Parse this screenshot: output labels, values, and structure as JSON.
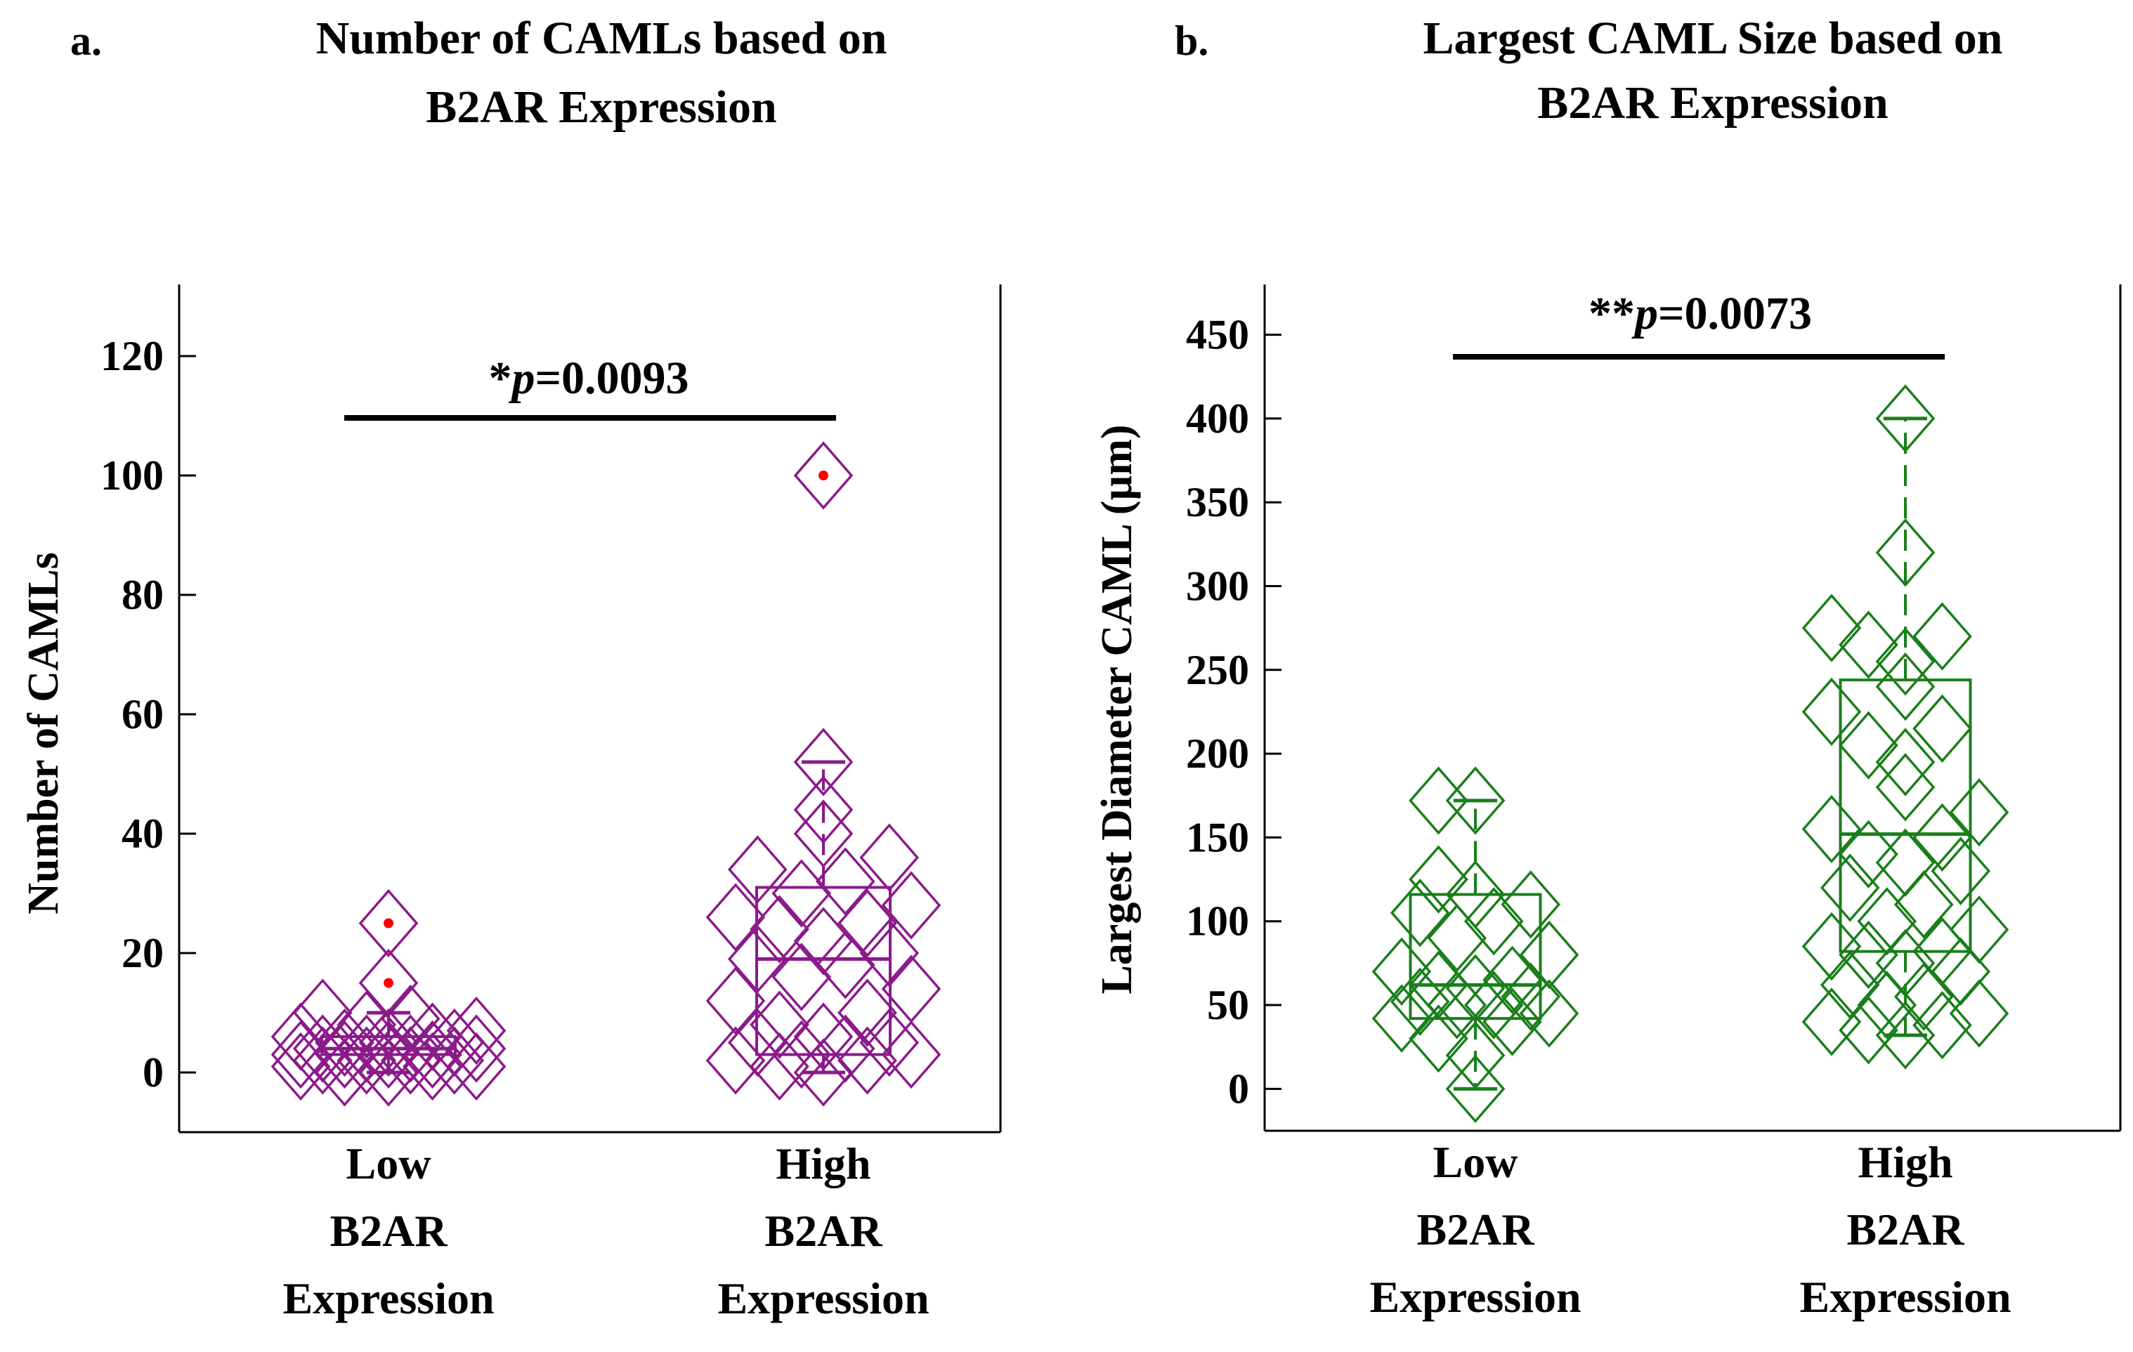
{
  "chart_data": [
    {
      "panel_label": "a.",
      "type": "boxplot",
      "title": [
        "Number of CAMLs based on",
        "B2AR Expression"
      ],
      "ylabel": "Number of CAMLs",
      "ylim": [
        -10,
        132
      ],
      "yticks": [
        0,
        20,
        40,
        60,
        80,
        100,
        120
      ],
      "color": "#8B1A8B",
      "outlier_color": "#FF0000",
      "categories": [
        {
          "lines": [
            "Low",
            "B2AR",
            "Expression"
          ],
          "box": {
            "q1": 3,
            "median": 4,
            "q3": 6,
            "whisker_low": 0,
            "whisker_high": 10
          },
          "points": [
            0,
            0,
            1,
            1,
            1,
            2,
            2,
            2,
            2,
            3,
            3,
            3,
            3,
            4,
            4,
            4,
            4,
            5,
            5,
            5,
            6,
            6,
            7,
            8,
            9,
            10,
            15,
            25
          ],
          "outliers": [
            15,
            25
          ]
        },
        {
          "lines": [
            "High",
            "B2AR",
            "Expression"
          ],
          "box": {
            "q1": 3,
            "median": 19,
            "q3": 31,
            "whisker_low": 0,
            "whisker_high": 52
          },
          "points": [
            0,
            1,
            2,
            2,
            3,
            3,
            4,
            5,
            5,
            6,
            8,
            10,
            12,
            14,
            16,
            18,
            19,
            20,
            22,
            24,
            25,
            26,
            28,
            30,
            32,
            34,
            36,
            40,
            44,
            52,
            100
          ],
          "outliers": [
            100
          ]
        }
      ],
      "annotation": {
        "prefix": "*",
        "p": "p",
        "value": "=0.0093"
      }
    },
    {
      "panel_label": "b.",
      "type": "boxplot",
      "title": [
        "Largest CAML Size based on",
        "B2AR Expression"
      ],
      "ylabel": "Largest Diameter CAML (µm)",
      "ylim": [
        -25,
        480
      ],
      "yticks": [
        0,
        50,
        100,
        150,
        200,
        250,
        300,
        350,
        400,
        450
      ],
      "color": "#1A7F1A",
      "outlier_color": "#FF0000",
      "categories": [
        {
          "lines": [
            "Low",
            "B2AR",
            "Expression"
          ],
          "box": {
            "q1": 42,
            "median": 62,
            "q3": 116,
            "whisker_low": 0,
            "whisker_high": 172
          },
          "points": [
            0,
            20,
            30,
            40,
            42,
            45,
            50,
            50,
            52,
            55,
            60,
            62,
            65,
            70,
            80,
            90,
            100,
            105,
            110,
            116,
            125,
            172,
            172
          ],
          "outliers": []
        },
        {
          "lines": [
            "High",
            "B2AR",
            "Expression"
          ],
          "box": {
            "q1": 82,
            "median": 152,
            "q3": 244,
            "whisker_low": 32,
            "whisker_high": 400
          },
          "points": [
            32,
            35,
            38,
            40,
            45,
            50,
            55,
            62,
            70,
            75,
            80,
            82,
            85,
            95,
            100,
            110,
            120,
            130,
            135,
            140,
            150,
            155,
            165,
            180,
            195,
            205,
            215,
            225,
            240,
            255,
            265,
            270,
            275,
            320,
            400
          ],
          "outliers": []
        }
      ],
      "annotation": {
        "prefix": "**",
        "p": "p",
        "value": "=0.0073"
      }
    }
  ]
}
